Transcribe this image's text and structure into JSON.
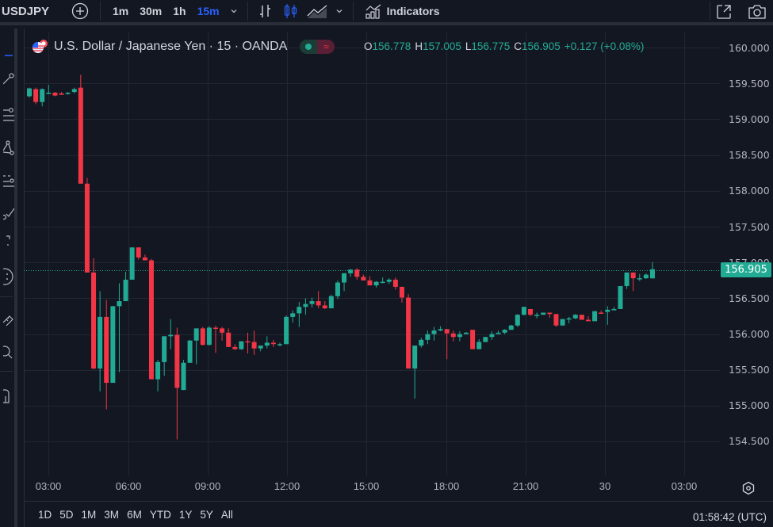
{
  "toolbar": {
    "symbol": "USDJPY",
    "intervals": [
      {
        "label": "1m",
        "active": false
      },
      {
        "label": "30m",
        "active": false
      },
      {
        "label": "1h",
        "active": false
      },
      {
        "label": "15m",
        "active": true
      }
    ],
    "indicators_label": "Indicators",
    "icons": [
      "add-symbol-icon",
      "chevron-down-icon",
      "bar-chart-type-icon",
      "candles-chart-type-icon",
      "area-chart-type-icon",
      "chevron-down-icon",
      "indicators-icon",
      "fullscreen-open-icon",
      "camera-snapshot-icon"
    ]
  },
  "legend": {
    "title": "U.S. Dollar / Japanese Yen · 15 · OANDA",
    "ohlc": {
      "o_label": "O",
      "o": "156.778",
      "h_label": "H",
      "h": "157.005",
      "l_label": "L",
      "l": "156.775",
      "c_label": "C",
      "c": "156.905",
      "change": "+0.127 (+0.08%)"
    }
  },
  "left_toolbar": {
    "icons": [
      "crosshair-icon",
      "trend-line-icon",
      "fib-retracement-icon",
      "pattern-icon",
      "prediction-icon",
      "brush-icon",
      "text-icon",
      "emoji-icon",
      "measure-ruler-icon",
      "zoom-icon",
      "magnet-lock-icon"
    ]
  },
  "price_axis": {
    "labels": [
      "160.000",
      "159.500",
      "159.000",
      "158.500",
      "158.000",
      "157.500",
      "157.000",
      "156.500",
      "156.000",
      "155.500",
      "155.000",
      "154.500"
    ],
    "last_price": "156.905"
  },
  "time_axis": {
    "labels": [
      "03:00",
      "06:00",
      "09:00",
      "12:00",
      "15:00",
      "18:00",
      "21:00",
      "30",
      "03:00"
    ]
  },
  "bottom": {
    "ranges": [
      "1D",
      "5D",
      "1M",
      "3M",
      "6M",
      "YTD",
      "1Y",
      "5Y",
      "All"
    ],
    "clock": "01:58:42 (UTC)"
  },
  "colors": {
    "up": "#22ab94",
    "down": "#f23645",
    "background": "#131722",
    "grid": "#232632",
    "accent": "#2962ff"
  },
  "chart_data": {
    "type": "candlestick",
    "title": "U.S. Dollar / Japanese Yen · 15 · OANDA",
    "xlabel": "",
    "ylabel": "",
    "ylim": [
      154.3,
      160.1
    ],
    "grid": true,
    "interval": "15m",
    "x_ticks": [
      "03:00",
      "06:00",
      "09:00",
      "12:00",
      "15:00",
      "18:00",
      "21:00",
      "30",
      "03:00"
    ],
    "y_ticks": [
      154.5,
      155.0,
      155.5,
      156.0,
      156.5,
      157.0,
      157.5,
      158.0,
      158.5,
      159.0,
      159.5,
      160.0
    ],
    "last_price": 156.905,
    "candles": [
      [
        159.32,
        159.44,
        159.3,
        159.43
      ],
      [
        159.42,
        159.44,
        159.21,
        159.24
      ],
      [
        159.24,
        159.43,
        159.18,
        159.42
      ],
      [
        159.37,
        159.48,
        159.35,
        159.37
      ],
      [
        159.37,
        159.38,
        159.32,
        159.33
      ],
      [
        159.36,
        159.38,
        159.36,
        159.34
      ],
      [
        159.37,
        159.38,
        159.34,
        159.37
      ],
      [
        159.38,
        159.44,
        159.36,
        159.42
      ],
      [
        159.44,
        159.62,
        159.43,
        158.1
      ],
      [
        158.1,
        158.18,
        156.86,
        156.86
      ],
      [
        156.86,
        157.06,
        155.51,
        155.52
      ],
      [
        155.52,
        156.6,
        155.2,
        156.24
      ],
      [
        156.24,
        156.48,
        154.95,
        155.32
      ],
      [
        155.32,
        156.39,
        155.32,
        156.39
      ],
      [
        156.39,
        156.71,
        155.47,
        156.46
      ],
      [
        156.46,
        156.87,
        156.46,
        156.76
      ],
      [
        156.76,
        157.21,
        156.76,
        157.21
      ],
      [
        157.21,
        157.21,
        157.04,
        157.07
      ],
      [
        157.07,
        157.11,
        157.04,
        157.03
      ],
      [
        157.03,
        157.05,
        155.37,
        155.37
      ],
      [
        155.37,
        155.64,
        155.2,
        155.61
      ],
      [
        155.61,
        155.82,
        155.42,
        155.97
      ],
      [
        155.97,
        156.21,
        155.79,
        155.99
      ],
      [
        155.99,
        156.09,
        154.53,
        155.25
      ],
      [
        155.22,
        155.64,
        155.22,
        155.6
      ],
      [
        155.6,
        155.92,
        155.63,
        155.91
      ],
      [
        155.91,
        156.03,
        155.58,
        156.08
      ],
      [
        156.08,
        156.1,
        155.84,
        155.85
      ],
      [
        155.85,
        156.11,
        155.84,
        156.09
      ],
      [
        156.09,
        156.12,
        155.74,
        156.08
      ],
      [
        156.08,
        156.1,
        155.91,
        156.02
      ],
      [
        156.02,
        156.08,
        155.91,
        155.82
      ],
      [
        155.82,
        155.86,
        155.78,
        155.79
      ],
      [
        155.79,
        155.9,
        155.78,
        155.9
      ],
      [
        155.9,
        156.02,
        155.73,
        155.89
      ],
      [
        155.89,
        156.05,
        155.71,
        155.8
      ],
      [
        155.8,
        155.84,
        155.76,
        155.84
      ],
      [
        155.84,
        155.97,
        155.8,
        155.88
      ],
      [
        155.88,
        155.92,
        155.82,
        155.86
      ],
      [
        155.86,
        155.88,
        155.83,
        155.86
      ],
      [
        155.86,
        156.26,
        155.86,
        156.24
      ],
      [
        156.24,
        156.33,
        156.16,
        156.29
      ],
      [
        156.29,
        156.45,
        156.1,
        156.38
      ],
      [
        156.38,
        156.5,
        156.27,
        156.42
      ],
      [
        156.42,
        156.51,
        156.37,
        156.46
      ],
      [
        156.46,
        156.6,
        156.36,
        156.4
      ],
      [
        156.4,
        156.46,
        156.35,
        156.36
      ],
      [
        156.36,
        156.55,
        156.36,
        156.53
      ],
      [
        156.53,
        156.75,
        156.49,
        156.72
      ],
      [
        156.72,
        156.83,
        156.6,
        156.85
      ],
      [
        156.85,
        156.91,
        156.8,
        156.9
      ],
      [
        156.9,
        156.92,
        156.76,
        156.8
      ],
      [
        156.8,
        156.83,
        156.77,
        156.75
      ],
      [
        156.75,
        156.81,
        156.72,
        156.68
      ],
      [
        156.68,
        156.74,
        156.65,
        156.73
      ],
      [
        156.73,
        156.79,
        156.71,
        156.73
      ],
      [
        156.73,
        156.78,
        156.7,
        156.76
      ],
      [
        156.76,
        156.79,
        156.62,
        156.66
      ],
      [
        156.66,
        156.64,
        156.44,
        156.51
      ],
      [
        156.51,
        156.56,
        155.52,
        155.52
      ],
      [
        155.52,
        155.59,
        155.1,
        155.84
      ],
      [
        155.84,
        155.95,
        155.81,
        155.92
      ],
      [
        155.92,
        156.05,
        155.86,
        156.0
      ],
      [
        156.0,
        156.1,
        155.91,
        156.05
      ],
      [
        156.05,
        156.11,
        156.04,
        156.07
      ],
      [
        156.07,
        156.07,
        155.65,
        156.01
      ],
      [
        156.01,
        156.05,
        155.9,
        155.96
      ],
      [
        155.96,
        156.04,
        155.9,
        156.0
      ],
      [
        156.0,
        156.03,
        156.0,
        156.02
      ],
      [
        156.06,
        156.06,
        155.81,
        155.79
      ],
      [
        155.79,
        155.93,
        155.8,
        155.89
      ],
      [
        155.89,
        155.96,
        155.89,
        155.96
      ],
      [
        155.96,
        156.04,
        155.92,
        156.0
      ],
      [
        156.0,
        156.05,
        156.0,
        156.02
      ],
      [
        156.02,
        156.07,
        156.0,
        156.06
      ],
      [
        156.06,
        156.13,
        156.06,
        156.12
      ],
      [
        156.12,
        156.28,
        156.1,
        156.27
      ],
      [
        156.27,
        156.34,
        156.26,
        156.38
      ],
      [
        156.35,
        156.34,
        156.25,
        156.27
      ],
      [
        156.27,
        156.3,
        156.22,
        156.27
      ],
      [
        156.27,
        156.3,
        156.27,
        156.3
      ],
      [
        156.3,
        156.29,
        156.23,
        156.28
      ],
      [
        156.28,
        156.27,
        156.1,
        156.12
      ],
      [
        156.12,
        156.17,
        156.13,
        156.21
      ],
      [
        156.21,
        156.24,
        156.15,
        156.22
      ],
      [
        156.22,
        156.28,
        156.21,
        156.27
      ],
      [
        156.27,
        156.26,
        156.2,
        156.2
      ],
      [
        156.2,
        156.25,
        156.2,
        156.18
      ],
      [
        156.18,
        156.32,
        156.18,
        156.32
      ],
      [
        156.3,
        156.33,
        156.29,
        156.29
      ],
      [
        156.31,
        156.39,
        156.13,
        156.34
      ],
      [
        156.34,
        156.38,
        156.33,
        156.35
      ],
      [
        156.35,
        156.67,
        156.35,
        156.67
      ],
      [
        156.67,
        156.86,
        156.63,
        156.86
      ],
      [
        156.86,
        156.86,
        156.6,
        156.78
      ],
      [
        156.78,
        156.84,
        156.74,
        156.78
      ],
      [
        156.78,
        156.85,
        156.77,
        156.83
      ],
      [
        156.778,
        157.005,
        156.775,
        156.905
      ]
    ]
  }
}
